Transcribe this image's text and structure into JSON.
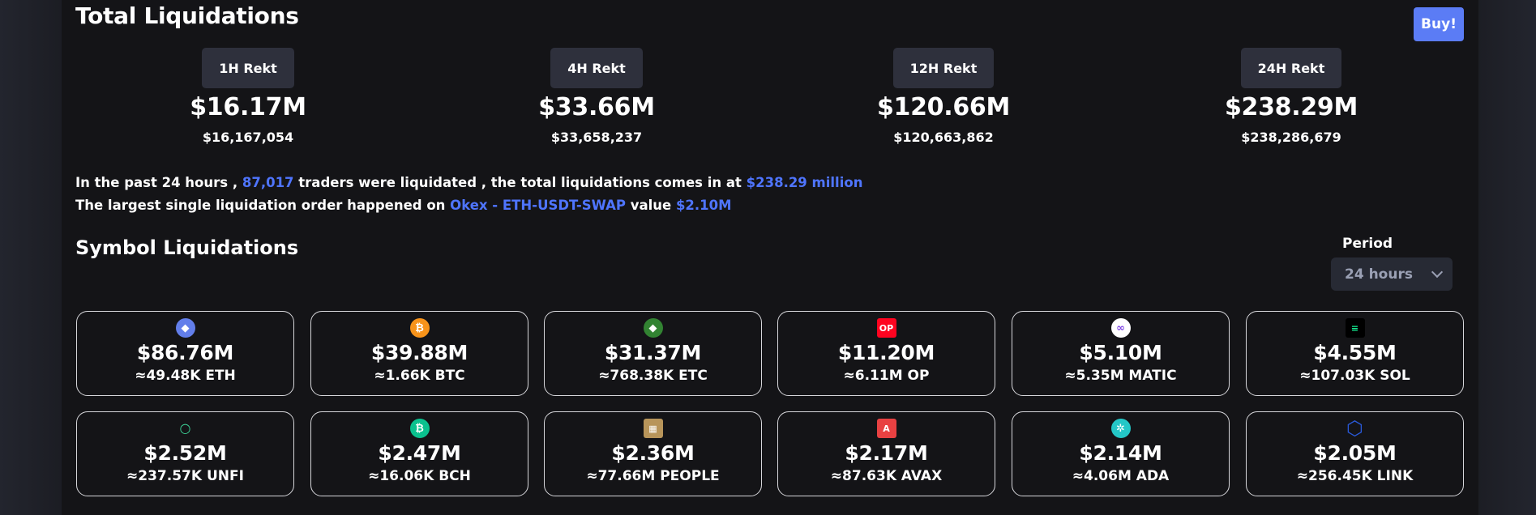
{
  "header": {
    "title": "Total Liquidations",
    "buy_label": "Buy!"
  },
  "rekt": [
    {
      "label": "1H Rekt",
      "value": "$16.17M",
      "exact": "$16,167,054"
    },
    {
      "label": "4H Rekt",
      "value": "$33.66M",
      "exact": "$33,658,237"
    },
    {
      "label": "12H Rekt",
      "value": "$120.66M",
      "exact": "$120,663,862"
    },
    {
      "label": "24H Rekt",
      "value": "$238.29M",
      "exact": "$238,286,679"
    }
  ],
  "summary": {
    "l1_a": "In the past 24 hours ,",
    "l1_traders": "87,017",
    "l1_b": "traders were liquidated , the total liquidations comes in at",
    "l1_total": "$238.29 million",
    "l2_a": "The largest single liquidation order happened on",
    "l2_order": "Okex - ETH-USDT-SWAP",
    "l2_b": "value",
    "l2_value": "$2.10M"
  },
  "symbols": {
    "title": "Symbol Liquidations",
    "period_label": "Period",
    "period_value": "24 hours"
  },
  "cards": [
    {
      "usd": "$86.76M",
      "amount": "≈49.48K ETH",
      "icon": "eth-icon",
      "color": "#627eea",
      "glyph": "◆"
    },
    {
      "usd": "$39.88M",
      "amount": "≈1.66K BTC",
      "icon": "btc-icon",
      "color": "#f7931a",
      "glyph": "₿"
    },
    {
      "usd": "$31.37M",
      "amount": "≈768.38K ETC",
      "icon": "etc-icon",
      "color": "#328332",
      "glyph": "◆"
    },
    {
      "usd": "$11.20M",
      "amount": "≈6.11M OP",
      "icon": "op-icon",
      "color": "#ff0420",
      "glyph": "OP"
    },
    {
      "usd": "$5.10M",
      "amount": "≈5.35M MATIC",
      "icon": "matic-icon",
      "color": "#ffffff",
      "glyph": "∞"
    },
    {
      "usd": "$4.55M",
      "amount": "≈107.03K SOL",
      "icon": "sol-icon",
      "color": "#000000",
      "glyph": "≡"
    },
    {
      "usd": "$2.52M",
      "amount": "≈237.57K UNFI",
      "icon": "unfi-icon",
      "color": "#141417",
      "glyph": "○"
    },
    {
      "usd": "$2.47M",
      "amount": "≈16.06K BCH",
      "icon": "bch-icon",
      "color": "#0ac18e",
      "glyph": "₿"
    },
    {
      "usd": "$2.36M",
      "amount": "≈77.66M PEOPLE",
      "icon": "people-icon",
      "color": "#b8955a",
      "glyph": "▦"
    },
    {
      "usd": "$2.17M",
      "amount": "≈87.63K AVAX",
      "icon": "avax-icon",
      "color": "#e84142",
      "glyph": "A"
    },
    {
      "usd": "$2.14M",
      "amount": "≈4.06M ADA",
      "icon": "ada-icon",
      "color": "#24c7c7",
      "glyph": "✲"
    },
    {
      "usd": "$2.05M",
      "amount": "≈256.45K LINK",
      "icon": "link-icon",
      "color": "#2a5ada",
      "glyph": "⬡"
    }
  ]
}
